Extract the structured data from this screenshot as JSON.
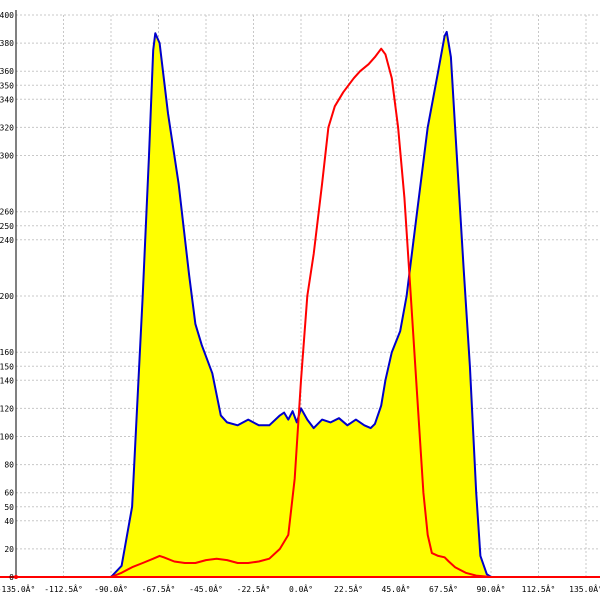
{
  "chart_data": {
    "type": "area",
    "xlabel": "",
    "ylabel": "",
    "xlim": [
      -135,
      135
    ],
    "ylim": [
      0,
      400
    ],
    "grid": true,
    "x_ticks": [
      -135,
      -112.5,
      -90,
      -67.5,
      -45,
      -22.5,
      0,
      22.5,
      45,
      67.5,
      90,
      112.5,
      135
    ],
    "x_tick_labels": [
      "-135.0Â°",
      "-112.5Â°",
      "-90.0Â°",
      "-67.5Â°",
      "-45.0Â°",
      "-22.5Â°",
      "0.0Â°",
      "22.5Â°",
      "45.0Â°",
      "67.5Â°",
      "90.0Â°",
      "112.5Â°",
      "135.0Â°"
    ],
    "y_ticks": [
      0,
      20,
      40,
      50,
      60,
      80,
      100,
      120,
      140,
      150,
      160,
      200,
      240,
      250,
      260,
      300,
      320,
      340,
      350,
      360,
      380,
      400
    ],
    "y_tick_labels": [
      "0",
      "20",
      "40",
      "50",
      "60",
      "80",
      "100",
      "120",
      "140",
      "150",
      "160",
      "200",
      "240",
      "250",
      "260",
      "300",
      "320",
      "340",
      "350",
      "360",
      "380",
      "400"
    ],
    "series": [
      {
        "color": "#0000cc",
        "fill": "#ffff00",
        "points": [
          [
            -90,
            0
          ],
          [
            -85,
            8
          ],
          [
            -80,
            50
          ],
          [
            -75,
            200
          ],
          [
            -72,
            300
          ],
          [
            -70,
            375
          ],
          [
            -69,
            387
          ],
          [
            -67,
            380
          ],
          [
            -63,
            330
          ],
          [
            -58,
            280
          ],
          [
            -53,
            215
          ],
          [
            -50,
            180
          ],
          [
            -47,
            165
          ],
          [
            -42,
            145
          ],
          [
            -38,
            115
          ],
          [
            -35,
            110
          ],
          [
            -30,
            108
          ],
          [
            -25,
            112
          ],
          [
            -20,
            108
          ],
          [
            -15,
            108
          ],
          [
            -10,
            115
          ],
          [
            -8,
            117
          ],
          [
            -6,
            112
          ],
          [
            -4,
            118
          ],
          [
            -2,
            110
          ],
          [
            0,
            120
          ],
          [
            3,
            112
          ],
          [
            6,
            106
          ],
          [
            10,
            112
          ],
          [
            14,
            110
          ],
          [
            18,
            113
          ],
          [
            22,
            108
          ],
          [
            26,
            112
          ],
          [
            30,
            108
          ],
          [
            33,
            106
          ],
          [
            35,
            109
          ],
          [
            38,
            122
          ],
          [
            40,
            140
          ],
          [
            43,
            160
          ],
          [
            47,
            175
          ],
          [
            50,
            200
          ],
          [
            55,
            260
          ],
          [
            60,
            320
          ],
          [
            65,
            360
          ],
          [
            68,
            385
          ],
          [
            69,
            388
          ],
          [
            71,
            370
          ],
          [
            73,
            320
          ],
          [
            77,
            220
          ],
          [
            80,
            150
          ],
          [
            83,
            60
          ],
          [
            85,
            15
          ],
          [
            88,
            2
          ],
          [
            90,
            0
          ]
        ]
      },
      {
        "color": "#ff0000",
        "fill": "none",
        "points": [
          [
            -90,
            0
          ],
          [
            -85,
            3
          ],
          [
            -80,
            7
          ],
          [
            -75,
            10
          ],
          [
            -70,
            13
          ],
          [
            -67,
            15
          ],
          [
            -65,
            14
          ],
          [
            -60,
            11
          ],
          [
            -55,
            10
          ],
          [
            -50,
            10
          ],
          [
            -45,
            12
          ],
          [
            -40,
            13
          ],
          [
            -35,
            12
          ],
          [
            -30,
            10
          ],
          [
            -25,
            10
          ],
          [
            -20,
            11
          ],
          [
            -15,
            13
          ],
          [
            -10,
            20
          ],
          [
            -6,
            30
          ],
          [
            -3,
            70
          ],
          [
            0,
            140
          ],
          [
            3,
            200
          ],
          [
            6,
            230
          ],
          [
            10,
            280
          ],
          [
            13,
            320
          ],
          [
            16,
            335
          ],
          [
            20,
            345
          ],
          [
            25,
            355
          ],
          [
            28,
            360
          ],
          [
            32,
            365
          ],
          [
            35,
            370
          ],
          [
            38,
            376
          ],
          [
            40,
            372
          ],
          [
            43,
            355
          ],
          [
            46,
            320
          ],
          [
            49,
            270
          ],
          [
            52,
            200
          ],
          [
            55,
            130
          ],
          [
            58,
            60
          ],
          [
            60,
            30
          ],
          [
            62,
            17
          ],
          [
            65,
            15
          ],
          [
            68,
            14
          ],
          [
            70,
            11
          ],
          [
            73,
            7
          ],
          [
            78,
            3
          ],
          [
            83,
            1
          ],
          [
            90,
            0
          ]
        ]
      }
    ]
  }
}
